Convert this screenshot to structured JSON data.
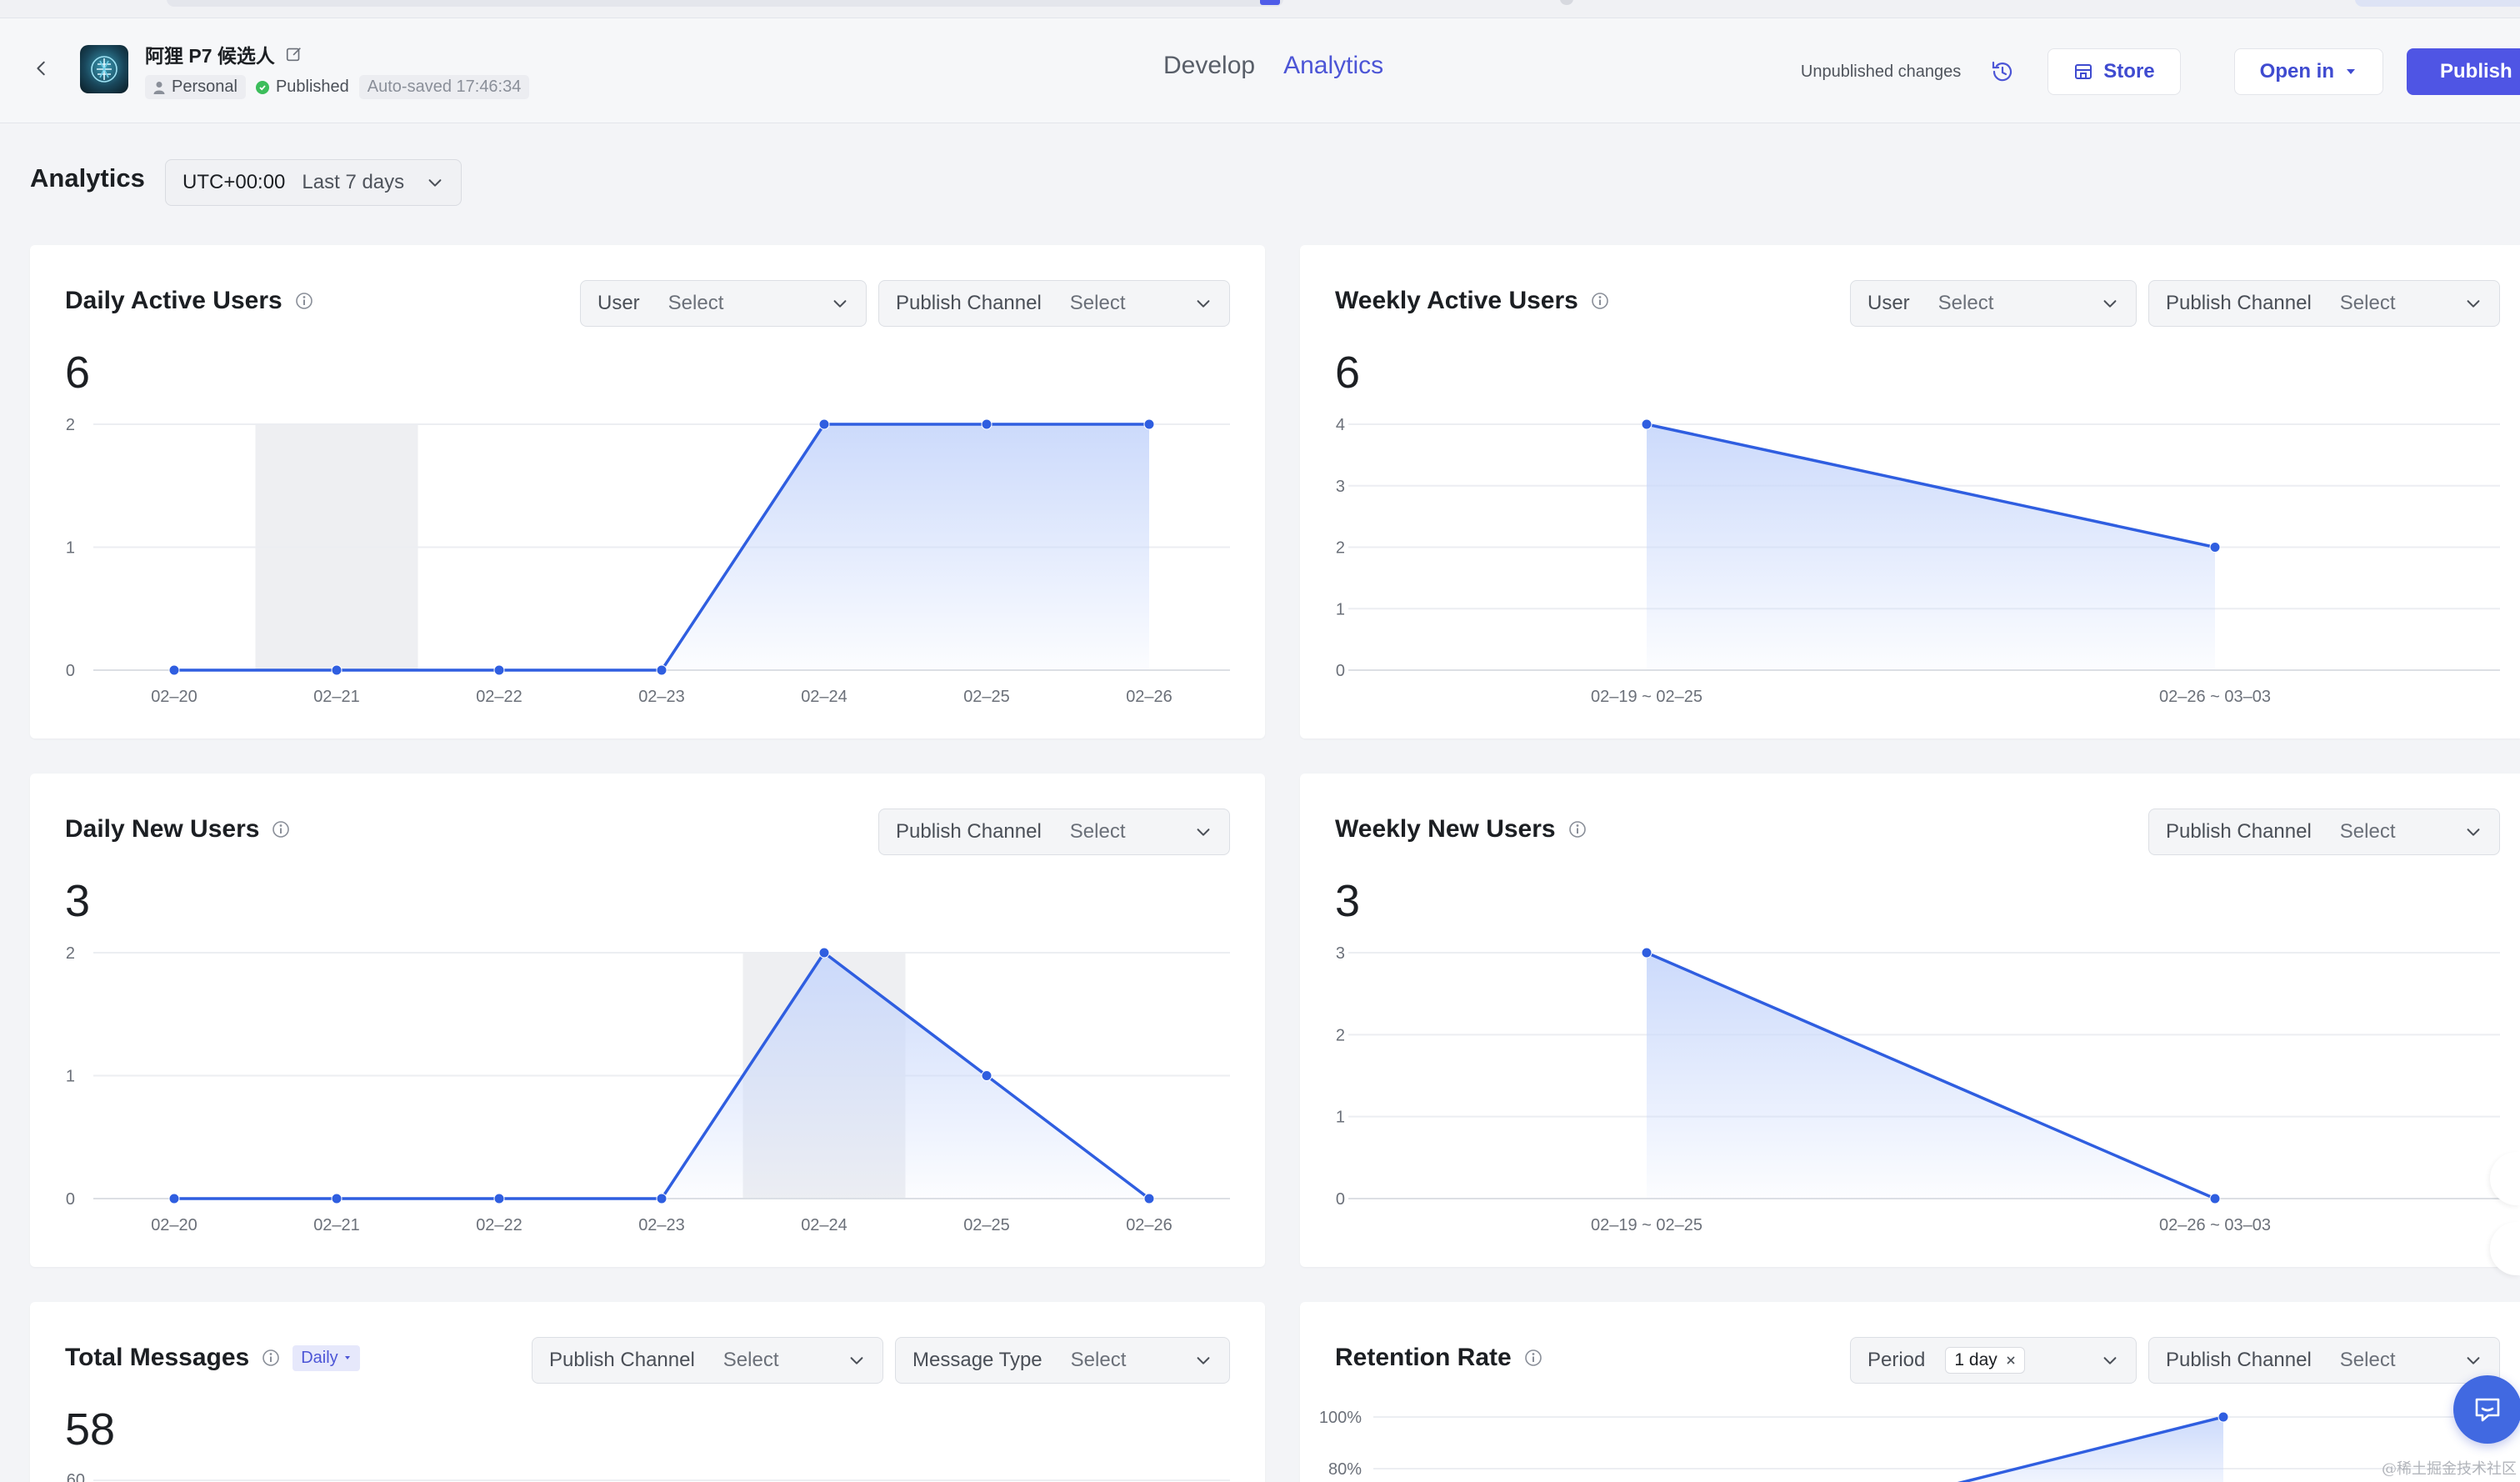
{
  "header": {
    "app_name": "阿狸 P7 候选人",
    "owner_badge": "Personal",
    "status_badge": "Published",
    "autosave": "Auto-saved 17:46:34",
    "tabs": [
      {
        "label": "Develop"
      },
      {
        "label": "Analytics"
      }
    ],
    "unpublished": "Unpublished changes",
    "store_label": "Store",
    "open_in_label": "Open in",
    "publish_label": "Publish"
  },
  "page": {
    "title": "Analytics",
    "timezone": "UTC+00:00",
    "range": "Last 7 days"
  },
  "filters": {
    "user": "User",
    "publish_channel": "Publish Channel",
    "message_type": "Message Type",
    "period": "Period",
    "select": "Select",
    "period_chip": "1 day",
    "granularity": "Daily"
  },
  "colors": {
    "accent": "#4f55e4",
    "line": "#2f5ee0",
    "fill": "#c9d8fb",
    "hover_band": "#eeeff2"
  },
  "cards": {
    "dau": {
      "title": "Daily Active Users",
      "value": "6"
    },
    "wau": {
      "title": "Weekly Active Users",
      "value": "6"
    },
    "dnu": {
      "title": "Daily New Users",
      "value": "3"
    },
    "wnu": {
      "title": "Weekly New Users",
      "value": "3"
    },
    "msgs": {
      "title": "Total Messages",
      "value": "58"
    },
    "ret": {
      "title": "Retention Rate"
    }
  },
  "chart_data": [
    {
      "id": "dau",
      "type": "area",
      "categories": [
        "02–20",
        "02–21",
        "02–22",
        "02–23",
        "02–24",
        "02–25",
        "02–26"
      ],
      "values": [
        0,
        0,
        0,
        0,
        2,
        2,
        2
      ],
      "ylim": [
        0,
        2
      ],
      "yticks": [
        "0",
        "1",
        "2"
      ],
      "highlight_index": 1
    },
    {
      "id": "wau",
      "type": "area",
      "categories": [
        "02–19 ~ 02–25",
        "02–26 ~ 03–03"
      ],
      "values": [
        4,
        2
      ],
      "ylim": [
        0,
        4
      ],
      "yticks": [
        "0",
        "1",
        "2",
        "3",
        "4"
      ]
    },
    {
      "id": "dnu",
      "type": "area",
      "categories": [
        "02–20",
        "02–21",
        "02–22",
        "02–23",
        "02–24",
        "02–25",
        "02–26"
      ],
      "values": [
        0,
        0,
        0,
        0,
        2,
        1,
        0
      ],
      "ylim": [
        0,
        2
      ],
      "yticks": [
        "0",
        "1",
        "2"
      ],
      "highlight_index": 4
    },
    {
      "id": "wnu",
      "type": "area",
      "categories": [
        "02–19 ~ 02–25",
        "02–26 ~ 03–03"
      ],
      "values": [
        3,
        0
      ],
      "ylim": [
        0,
        3
      ],
      "yticks": [
        "0",
        "1",
        "2",
        "3"
      ]
    },
    {
      "id": "msgs",
      "type": "area",
      "yticks_visible": [
        "60"
      ]
    },
    {
      "id": "ret",
      "type": "area",
      "yticks_visible": [
        "100%",
        "80%"
      ],
      "last_value": "100%"
    }
  ],
  "watermark": "@稀土掘金技术社区"
}
